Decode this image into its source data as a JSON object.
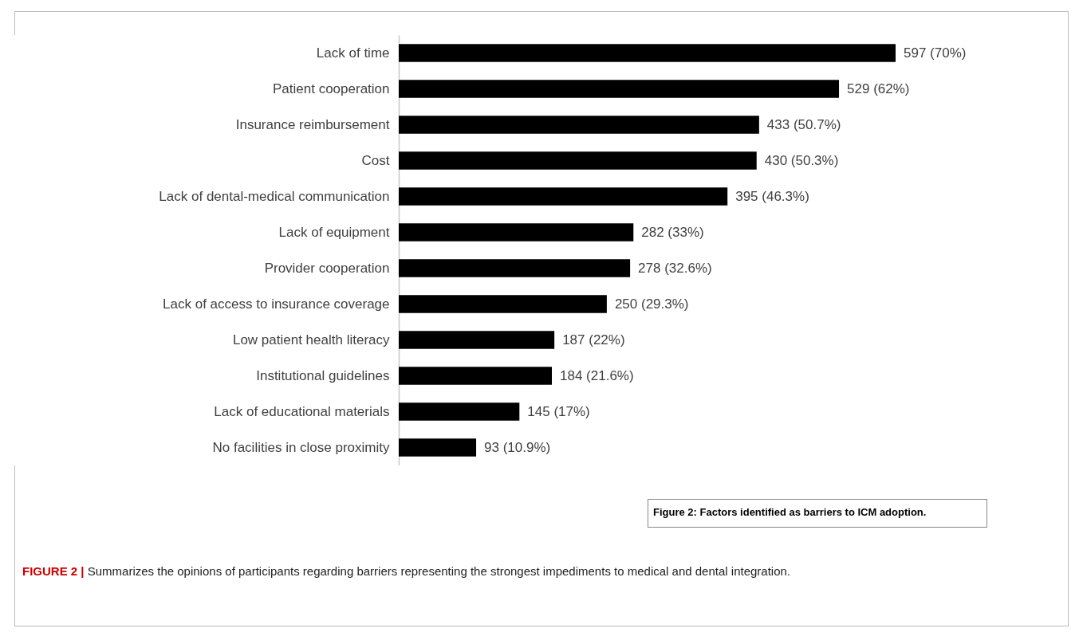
{
  "chart_data": {
    "type": "bar",
    "orientation": "horizontal",
    "color": "#000000",
    "categories": [
      "Lack of time",
      "Patient cooperation",
      "Insurance reimbursement",
      "Cost",
      "Lack of dental-medical communication",
      "Lack of equipment",
      "Provider cooperation",
      "Lack of access to insurance coverage",
      "Low patient health literacy",
      "Institutional guidelines",
      "Lack of educational materials",
      "No facilities in close proximity"
    ],
    "values": [
      597,
      529,
      433,
      430,
      395,
      282,
      278,
      250,
      187,
      184,
      145,
      93
    ],
    "value_labels": [
      "597 (70%)",
      "529 (62%)",
      "433 (50.7%)",
      "430 (50.3%)",
      "395 (46.3%)",
      "282 (33%)",
      "278 (32.6%)",
      "250 (29.3%)",
      "187 (22%)",
      "184 (21.6%)",
      "145 (17%)",
      "93 (10.9%)"
    ],
    "annotations": [
      "Figure 2: Factors identified as barriers to ICM adoption.",
      "FIGURE 2 | Summarizes the opinions of participants regarding barriers representing the strongest impediments to medical and dental integration."
    ],
    "grid": false
  }
}
